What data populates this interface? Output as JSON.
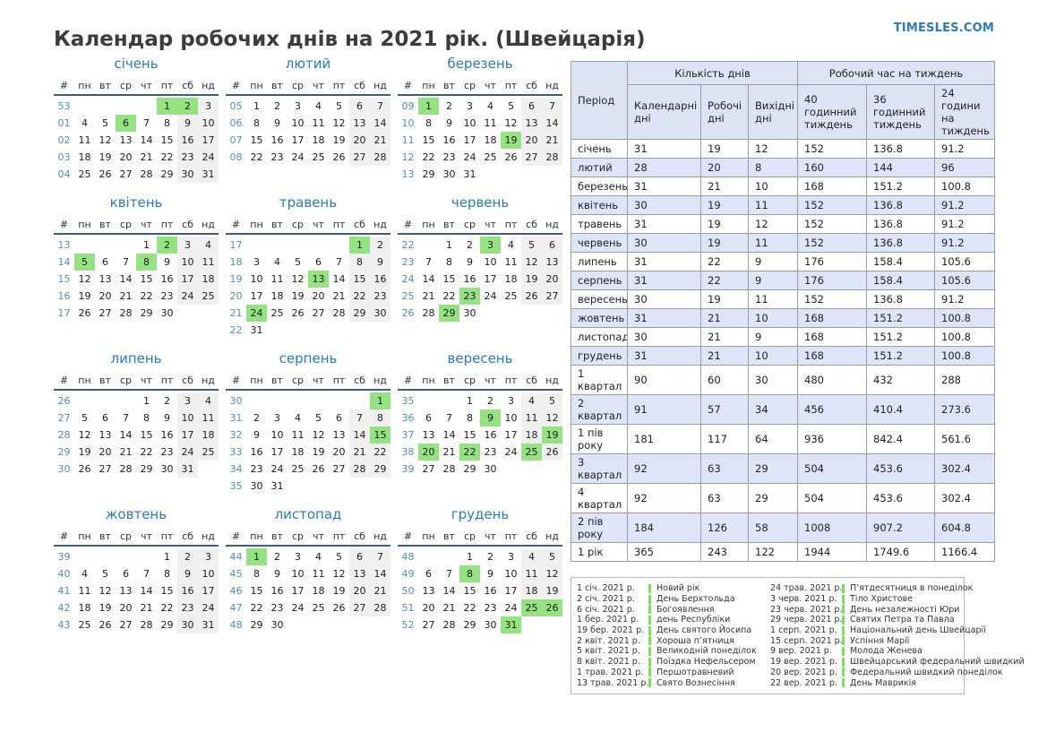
{
  "header": {
    "title": "Календар робочих днів на 2021 рік. (Швейцарія)",
    "site_link": "TIMESLES.COM"
  },
  "colors": {
    "accent_blue": "#2a7bbd",
    "week_number_blue": "#4d8fc0",
    "holiday_green": "#94e282",
    "legend_bar_green": "#7be055",
    "weekend_gray": "#f0f0f0",
    "table_header_bg": "#dce3f5",
    "table_stripe_bg": "#dee5f9"
  },
  "calendar": {
    "weekday_headers": [
      "#",
      "пн",
      "вт",
      "ср",
      "чт",
      "пт",
      "сб",
      "нд"
    ]
  },
  "months": [
    {
      "name": "січень",
      "holidays": [
        1,
        2,
        6
      ],
      "weeks": [
        {
          "num": "53",
          "days": [
            "",
            "",
            "",
            "",
            "1",
            "2",
            "3"
          ]
        },
        {
          "num": "01",
          "days": [
            "4",
            "5",
            "6",
            "7",
            "8",
            "9",
            "10"
          ]
        },
        {
          "num": "02",
          "days": [
            "11",
            "12",
            "13",
            "14",
            "15",
            "16",
            "17"
          ]
        },
        {
          "num": "03",
          "days": [
            "18",
            "19",
            "20",
            "21",
            "22",
            "23",
            "24"
          ]
        },
        {
          "num": "04",
          "days": [
            "25",
            "26",
            "27",
            "28",
            "29",
            "30",
            "31"
          ]
        }
      ]
    },
    {
      "name": "лютий",
      "holidays": [],
      "weeks": [
        {
          "num": "05",
          "days": [
            "1",
            "2",
            "3",
            "4",
            "5",
            "6",
            "7"
          ]
        },
        {
          "num": "06",
          "days": [
            "8",
            "9",
            "10",
            "11",
            "12",
            "13",
            "14"
          ]
        },
        {
          "num": "07",
          "days": [
            "15",
            "16",
            "17",
            "18",
            "19",
            "20",
            "21"
          ]
        },
        {
          "num": "08",
          "days": [
            "22",
            "23",
            "24",
            "25",
            "26",
            "27",
            "28"
          ]
        }
      ]
    },
    {
      "name": "березень",
      "holidays": [
        1,
        19
      ],
      "weeks": [
        {
          "num": "09",
          "days": [
            "1",
            "2",
            "3",
            "4",
            "5",
            "6",
            "7"
          ]
        },
        {
          "num": "10",
          "days": [
            "8",
            "9",
            "10",
            "11",
            "12",
            "13",
            "14"
          ]
        },
        {
          "num": "11",
          "days": [
            "15",
            "16",
            "17",
            "18",
            "19",
            "20",
            "21"
          ]
        },
        {
          "num": "12",
          "days": [
            "22",
            "23",
            "24",
            "25",
            "26",
            "27",
            "28"
          ]
        },
        {
          "num": "13",
          "days": [
            "29",
            "30",
            "31",
            "",
            "",
            "",
            ""
          ]
        }
      ]
    },
    {
      "name": "квітень",
      "holidays": [
        2,
        5,
        8
      ],
      "weeks": [
        {
          "num": "13",
          "days": [
            "",
            "",
            "",
            "1",
            "2",
            "3",
            "4"
          ]
        },
        {
          "num": "14",
          "days": [
            "5",
            "6",
            "7",
            "8",
            "9",
            "10",
            "11"
          ]
        },
        {
          "num": "15",
          "days": [
            "12",
            "13",
            "14",
            "15",
            "16",
            "17",
            "18"
          ]
        },
        {
          "num": "16",
          "days": [
            "19",
            "20",
            "21",
            "22",
            "23",
            "24",
            "25"
          ]
        },
        {
          "num": "17",
          "days": [
            "26",
            "27",
            "28",
            "29",
            "30",
            "",
            ""
          ]
        }
      ]
    },
    {
      "name": "травень",
      "holidays": [
        1,
        13,
        24
      ],
      "weeks": [
        {
          "num": "17",
          "days": [
            "",
            "",
            "",
            "",
            "",
            "1",
            "2"
          ]
        },
        {
          "num": "18",
          "days": [
            "3",
            "4",
            "5",
            "6",
            "7",
            "8",
            "9"
          ]
        },
        {
          "num": "19",
          "days": [
            "10",
            "11",
            "12",
            "13",
            "14",
            "15",
            "16"
          ]
        },
        {
          "num": "20",
          "days": [
            "17",
            "18",
            "19",
            "20",
            "21",
            "22",
            "23"
          ]
        },
        {
          "num": "21",
          "days": [
            "24",
            "25",
            "26",
            "27",
            "28",
            "29",
            "30"
          ]
        },
        {
          "num": "22",
          "days": [
            "31",
            "",
            "",
            "",
            "",
            "",
            ""
          ]
        }
      ]
    },
    {
      "name": "червень",
      "holidays": [
        3,
        23,
        29
      ],
      "weeks": [
        {
          "num": "22",
          "days": [
            "",
            "1",
            "2",
            "3",
            "4",
            "5",
            "6"
          ]
        },
        {
          "num": "23",
          "days": [
            "7",
            "8",
            "9",
            "10",
            "11",
            "12",
            "13"
          ]
        },
        {
          "num": "24",
          "days": [
            "14",
            "15",
            "16",
            "17",
            "18",
            "19",
            "20"
          ]
        },
        {
          "num": "25",
          "days": [
            "21",
            "22",
            "23",
            "24",
            "25",
            "26",
            "27"
          ]
        },
        {
          "num": "26",
          "days": [
            "28",
            "29",
            "30",
            "",
            "",
            "",
            ""
          ]
        }
      ]
    },
    {
      "name": "липень",
      "holidays": [],
      "weeks": [
        {
          "num": "26",
          "days": [
            "",
            "",
            "",
            "1",
            "2",
            "3",
            "4"
          ]
        },
        {
          "num": "27",
          "days": [
            "5",
            "6",
            "7",
            "8",
            "9",
            "10",
            "11"
          ]
        },
        {
          "num": "28",
          "days": [
            "12",
            "13",
            "14",
            "15",
            "16",
            "17",
            "18"
          ]
        },
        {
          "num": "29",
          "days": [
            "19",
            "20",
            "21",
            "22",
            "23",
            "24",
            "25"
          ]
        },
        {
          "num": "30",
          "days": [
            "26",
            "27",
            "28",
            "29",
            "30",
            "31",
            ""
          ]
        }
      ]
    },
    {
      "name": "серпень",
      "holidays": [
        1,
        15
      ],
      "weeks": [
        {
          "num": "30",
          "days": [
            "",
            "",
            "",
            "",
            "",
            "",
            "1"
          ]
        },
        {
          "num": "31",
          "days": [
            "2",
            "3",
            "4",
            "5",
            "6",
            "7",
            "8"
          ]
        },
        {
          "num": "32",
          "days": [
            "9",
            "10",
            "11",
            "12",
            "13",
            "14",
            "15"
          ]
        },
        {
          "num": "33",
          "days": [
            "16",
            "17",
            "18",
            "19",
            "20",
            "21",
            "22"
          ]
        },
        {
          "num": "34",
          "days": [
            "23",
            "24",
            "25",
            "26",
            "27",
            "28",
            "29"
          ]
        },
        {
          "num": "35",
          "days": [
            "30",
            "31",
            "",
            "",
            "",
            "",
            ""
          ]
        }
      ]
    },
    {
      "name": "вересень",
      "holidays": [
        9,
        19,
        20,
        22,
        25
      ],
      "weeks": [
        {
          "num": "35",
          "days": [
            "",
            "",
            "1",
            "2",
            "3",
            "4",
            "5"
          ]
        },
        {
          "num": "36",
          "days": [
            "6",
            "7",
            "8",
            "9",
            "10",
            "11",
            "12"
          ]
        },
        {
          "num": "37",
          "days": [
            "13",
            "14",
            "15",
            "16",
            "17",
            "18",
            "19"
          ]
        },
        {
          "num": "38",
          "days": [
            "20",
            "21",
            "22",
            "23",
            "24",
            "25",
            "26"
          ]
        },
        {
          "num": "39",
          "days": [
            "27",
            "28",
            "29",
            "30",
            "",
            "",
            ""
          ]
        }
      ]
    },
    {
      "name": "жовтень",
      "holidays": [],
      "weeks": [
        {
          "num": "39",
          "days": [
            "",
            "",
            "",
            "",
            "1",
            "2",
            "3"
          ]
        },
        {
          "num": "40",
          "days": [
            "4",
            "5",
            "6",
            "7",
            "8",
            "9",
            "10"
          ]
        },
        {
          "num": "41",
          "days": [
            "11",
            "12",
            "13",
            "14",
            "15",
            "16",
            "17"
          ]
        },
        {
          "num": "42",
          "days": [
            "18",
            "19",
            "20",
            "21",
            "22",
            "23",
            "24"
          ]
        },
        {
          "num": "43",
          "days": [
            "25",
            "26",
            "27",
            "28",
            "29",
            "30",
            "31"
          ]
        }
      ]
    },
    {
      "name": "листопад",
      "holidays": [
        1
      ],
      "weeks": [
        {
          "num": "44",
          "days": [
            "1",
            "2",
            "3",
            "4",
            "5",
            "6",
            "7"
          ]
        },
        {
          "num": "45",
          "days": [
            "8",
            "9",
            "10",
            "11",
            "12",
            "13",
            "14"
          ]
        },
        {
          "num": "46",
          "days": [
            "15",
            "16",
            "17",
            "18",
            "19",
            "20",
            "21"
          ]
        },
        {
          "num": "47",
          "days": [
            "22",
            "23",
            "24",
            "25",
            "26",
            "27",
            "28"
          ]
        },
        {
          "num": "48",
          "days": [
            "29",
            "30",
            "",
            "",
            "",
            "",
            ""
          ]
        }
      ]
    },
    {
      "name": "грудень",
      "holidays": [
        8,
        25,
        26,
        31
      ],
      "weeks": [
        {
          "num": "48",
          "days": [
            "",
            "",
            "1",
            "2",
            "3",
            "4",
            "5"
          ]
        },
        {
          "num": "49",
          "days": [
            "6",
            "7",
            "8",
            "9",
            "10",
            "11",
            "12"
          ]
        },
        {
          "num": "50",
          "days": [
            "13",
            "14",
            "15",
            "16",
            "17",
            "18",
            "19"
          ]
        },
        {
          "num": "51",
          "days": [
            "20",
            "21",
            "22",
            "23",
            "24",
            "25",
            "26"
          ]
        },
        {
          "num": "52",
          "days": [
            "27",
            "28",
            "29",
            "30",
            "31",
            "",
            ""
          ]
        }
      ]
    }
  ],
  "worktable": {
    "col_period": "Період",
    "group_days": "Кількість днів",
    "group_hours": "Робочий час на тиждень",
    "sub_headers": [
      "Календарні дні",
      "Робочі дні",
      "Вихідні дні",
      "40 годинний тиждень",
      "36 годинний тиждень",
      "24 години на тиждень"
    ],
    "rows": [
      {
        "period": "січень",
        "values": [
          "31",
          "19",
          "12",
          "152",
          "136.8",
          "91.2"
        ]
      },
      {
        "period": "лютий",
        "values": [
          "28",
          "20",
          "8",
          "160",
          "144",
          "96"
        ]
      },
      {
        "period": "березень",
        "values": [
          "31",
          "21",
          "10",
          "168",
          "151.2",
          "100.8"
        ]
      },
      {
        "period": "квітень",
        "values": [
          "30",
          "19",
          "11",
          "152",
          "136.8",
          "91.2"
        ]
      },
      {
        "period": "травень",
        "values": [
          "31",
          "19",
          "12",
          "152",
          "136.8",
          "91.2"
        ]
      },
      {
        "period": "червень",
        "values": [
          "30",
          "19",
          "11",
          "152",
          "136.8",
          "91.2"
        ]
      },
      {
        "period": "липень",
        "values": [
          "31",
          "22",
          "9",
          "176",
          "158.4",
          "105.6"
        ]
      },
      {
        "period": "серпень",
        "values": [
          "31",
          "22",
          "9",
          "176",
          "158.4",
          "105.6"
        ]
      },
      {
        "period": "вересень",
        "values": [
          "30",
          "19",
          "11",
          "152",
          "136.8",
          "91.2"
        ]
      },
      {
        "period": "жовтень",
        "values": [
          "31",
          "21",
          "10",
          "168",
          "151.2",
          "100.8"
        ]
      },
      {
        "period": "листопад",
        "values": [
          "30",
          "21",
          "9",
          "168",
          "151.2",
          "100.8"
        ]
      },
      {
        "period": "грудень",
        "values": [
          "31",
          "21",
          "10",
          "168",
          "151.2",
          "100.8"
        ]
      },
      {
        "period": "1 квартал",
        "values": [
          "90",
          "60",
          "30",
          "480",
          "432",
          "288"
        ]
      },
      {
        "period": "2 квартал",
        "values": [
          "91",
          "57",
          "34",
          "456",
          "410.4",
          "273.6"
        ]
      },
      {
        "period": "1 пів року",
        "values": [
          "181",
          "117",
          "64",
          "936",
          "842.4",
          "561.6"
        ]
      },
      {
        "period": "3 квартал",
        "values": [
          "92",
          "63",
          "29",
          "504",
          "453.6",
          "302.4"
        ]
      },
      {
        "period": "4 квартал",
        "values": [
          "92",
          "63",
          "29",
          "504",
          "453.6",
          "302.4"
        ]
      },
      {
        "period": "2 пів року",
        "values": [
          "184",
          "126",
          "58",
          "1008",
          "907.2",
          "604.8"
        ]
      },
      {
        "period": "1 рік",
        "values": [
          "365",
          "243",
          "122",
          "1944",
          "1749.6",
          "1166.4"
        ]
      }
    ]
  },
  "holidays_legend": {
    "columns": [
      [
        {
          "date": "1 січ. 2021 р.",
          "name": "Новий рік"
        },
        {
          "date": "2 січ. 2021 р.",
          "name": "День Берхтольда"
        },
        {
          "date": "6 січ. 2021 р.",
          "name": "Богоявлення"
        },
        {
          "date": "1 бер. 2021 р.",
          "name": "день Республіки"
        },
        {
          "date": "19 бер. 2021 р.",
          "name": "День святого Йосипа"
        },
        {
          "date": "2 квіт. 2021 р.",
          "name": "Хороша п’ятниця"
        },
        {
          "date": "5 квіт. 2021 р.",
          "name": "Великодній понеділок"
        },
        {
          "date": "8 квіт. 2021 р.",
          "name": "Поїздка Нефельсером"
        },
        {
          "date": "1 трав. 2021 р.",
          "name": "Першотравневий"
        },
        {
          "date": "13 трав. 2021 р.",
          "name": "Свято Вознесіння"
        }
      ],
      [
        {
          "date": "24 трав. 2021 р.",
          "name": "П’ятдесятниця в понеділок"
        },
        {
          "date": "3 черв. 2021 р.",
          "name": "Тіло Христове"
        },
        {
          "date": "23 черв. 2021 р.",
          "name": "День незалежності Юри"
        },
        {
          "date": "29 черв. 2021 р.",
          "name": "Святих Петра та Павла"
        },
        {
          "date": "1 серп. 2021 р.",
          "name": "Національний день Швейцарії"
        },
        {
          "date": "15 серп. 2021 р.",
          "name": "Успіння Марії"
        },
        {
          "date": "9 вер. 2021 р.",
          "name": "Молода Женева"
        },
        {
          "date": "19 вер. 2021 р.",
          "name": "Швейцарський федеральний швидкий"
        },
        {
          "date": "20 вер. 2021 р.",
          "name": "Федеральний швидкий понеділок"
        },
        {
          "date": "22 вер. 2021 р.",
          "name": "День Маврикія"
        }
      ]
    ]
  }
}
